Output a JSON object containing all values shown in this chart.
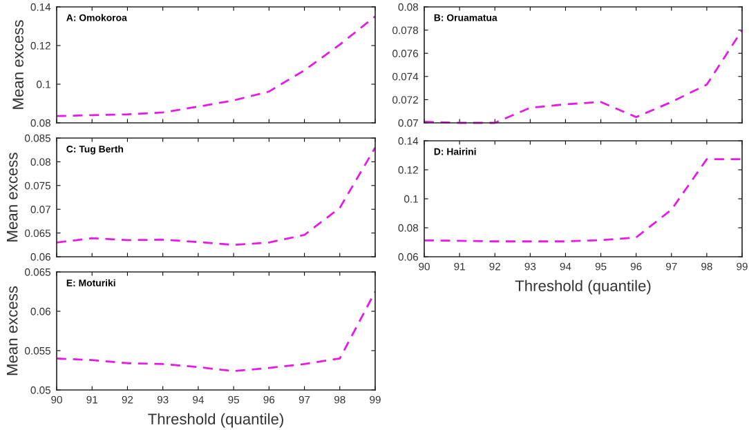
{
  "chart_data": [
    {
      "type": "line",
      "title": "A: Omokoroa",
      "ylabel": "Mean excess",
      "x": [
        90,
        91,
        92,
        93,
        94,
        95,
        96,
        97,
        98,
        99
      ],
      "xlim": [
        90,
        99
      ],
      "xticks": [
        90,
        91,
        92,
        93,
        94,
        95,
        96,
        97,
        98,
        99
      ],
      "ylim": [
        0.08,
        0.14
      ],
      "yticks": [
        0.08,
        0.1,
        0.12,
        0.14
      ],
      "tick_labels": "y",
      "line_style": "dashed",
      "series": [
        {
          "color": "#e619e6",
          "values": [
            0.0835,
            0.084,
            0.0844,
            0.0854,
            0.0884,
            0.0916,
            0.0962,
            0.1072,
            0.1205,
            0.1351
          ]
        }
      ]
    },
    {
      "type": "line",
      "title": "B: Oruamatua",
      "x": [
        90,
        91,
        92,
        93,
        94,
        95,
        96,
        97,
        98,
        99
      ],
      "xlim": [
        90,
        99
      ],
      "xticks": [
        90,
        91,
        92,
        93,
        94,
        95,
        96,
        97,
        98,
        99
      ],
      "ylim": [
        0.07,
        0.08
      ],
      "yticks": [
        0.07,
        0.072,
        0.074,
        0.076,
        0.078,
        0.08
      ],
      "tick_labels": "y",
      "line_style": "dashed",
      "series": [
        {
          "color": "#e619e6",
          "values": [
            0.0701,
            0.07,
            0.07,
            0.0713,
            0.0716,
            0.0718,
            0.0705,
            0.0718,
            0.0733,
            0.078
          ]
        }
      ]
    },
    {
      "type": "line",
      "title": "C: Tug Berth",
      "ylabel": "Mean excess",
      "x": [
        90,
        91,
        92,
        93,
        94,
        95,
        96,
        97,
        98,
        99
      ],
      "xlim": [
        90,
        99
      ],
      "xticks": [
        90,
        91,
        92,
        93,
        94,
        95,
        96,
        97,
        98,
        99
      ],
      "ylim": [
        0.06,
        0.085
      ],
      "yticks": [
        0.06,
        0.065,
        0.07,
        0.075,
        0.08,
        0.085
      ],
      "tick_labels": "y",
      "line_style": "dashed",
      "series": [
        {
          "color": "#e619e6",
          "values": [
            0.063,
            0.0639,
            0.0635,
            0.0636,
            0.0631,
            0.0625,
            0.063,
            0.0646,
            0.0703,
            0.083
          ]
        }
      ]
    },
    {
      "type": "line",
      "title": "D: Hairini",
      "xlabel": "Threshold (quantile)",
      "x": [
        90,
        91,
        92,
        93,
        94,
        95,
        96,
        97,
        98,
        99
      ],
      "xlim": [
        90,
        99
      ],
      "xticks": [
        90,
        91,
        92,
        93,
        94,
        95,
        96,
        97,
        98,
        99
      ],
      "ylim": [
        0.06,
        0.14
      ],
      "yticks": [
        0.06,
        0.08,
        0.1,
        0.12,
        0.14
      ],
      "line_style": "dashed",
      "series": [
        {
          "color": "#e619e6",
          "values": [
            0.0713,
            0.071,
            0.0706,
            0.0706,
            0.0706,
            0.0715,
            0.0733,
            0.0925,
            0.1273,
            0.1273
          ]
        }
      ]
    },
    {
      "type": "line",
      "title": "E: Moturiki",
      "ylabel": "Mean excess",
      "xlabel": "Threshold (quantile)",
      "x": [
        90,
        91,
        92,
        93,
        94,
        95,
        96,
        97,
        98,
        99
      ],
      "xlim": [
        90,
        99
      ],
      "xticks": [
        90,
        91,
        92,
        93,
        94,
        95,
        96,
        97,
        98,
        99
      ],
      "ylim": [
        0.05,
        0.065
      ],
      "yticks": [
        0.05,
        0.055,
        0.06,
        0.065
      ],
      "line_style": "dashed",
      "series": [
        {
          "color": "#e619e6",
          "values": [
            0.054,
            0.0538,
            0.0534,
            0.0533,
            0.0529,
            0.0524,
            0.0528,
            0.0533,
            0.054,
            0.0625
          ]
        }
      ]
    }
  ]
}
